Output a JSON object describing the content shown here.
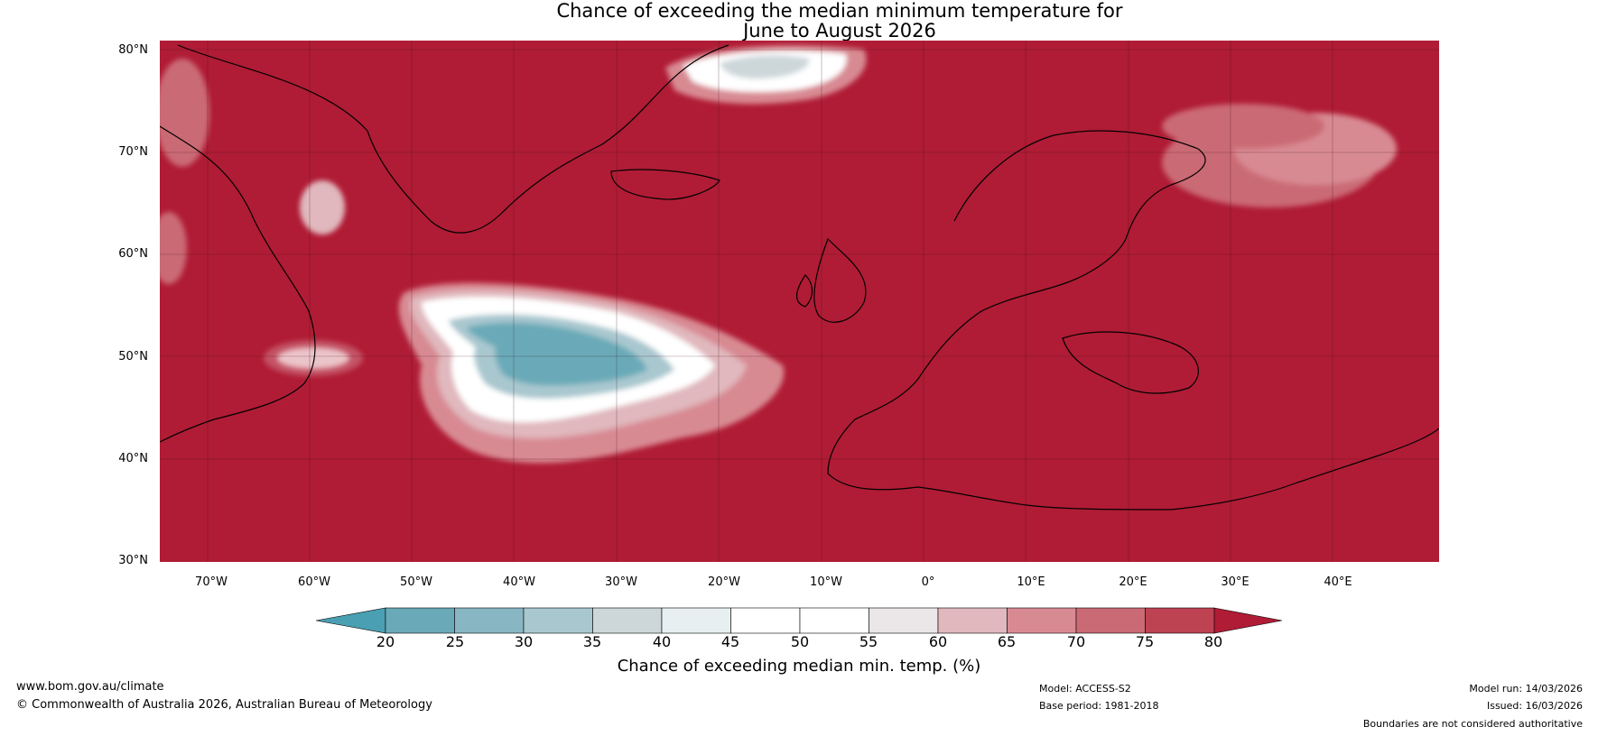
{
  "title_line1": "Chance of exceeding the median minimum temperature for",
  "title_line2": "June to August 2026",
  "latitudes": [
    "80°N",
    "70°N",
    "60°N",
    "50°N",
    "40°N",
    "30°N"
  ],
  "longitudes": [
    "70°W",
    "60°W",
    "50°W",
    "40°W",
    "30°W",
    "20°W",
    "10°W",
    "0°",
    "10°E",
    "20°E",
    "30°E",
    "40°E"
  ],
  "colorbar": {
    "ticks": [
      "20",
      "25",
      "30",
      "35",
      "40",
      "45",
      "50",
      "55",
      "60",
      "65",
      "70",
      "75",
      "80"
    ],
    "colors": [
      "#4a9fb2",
      "#6aaab8",
      "#88b6c3",
      "#a9c7cf",
      "#cdd7da",
      "#e8eff0",
      "#ffffff",
      "#ffffff",
      "#ebe6e7",
      "#e0b8bd",
      "#d88a93",
      "#ca6a74",
      "#be4352",
      "#b01c35"
    ],
    "label": "Chance of exceeding median min. temp. (%)"
  },
  "footer": {
    "url": "www.bom.gov.au/climate",
    "copyright": "© Commonwealth of Australia 2026, Australian Bureau of Meteorology",
    "model": "Model: ACCESS-S2",
    "base_period": "Base period: 1981-2018",
    "model_run": "Model run: 14/03/2026",
    "issued": "Issued: 16/03/2026",
    "disclaimer": "Boundaries are not considered authoritative"
  }
}
